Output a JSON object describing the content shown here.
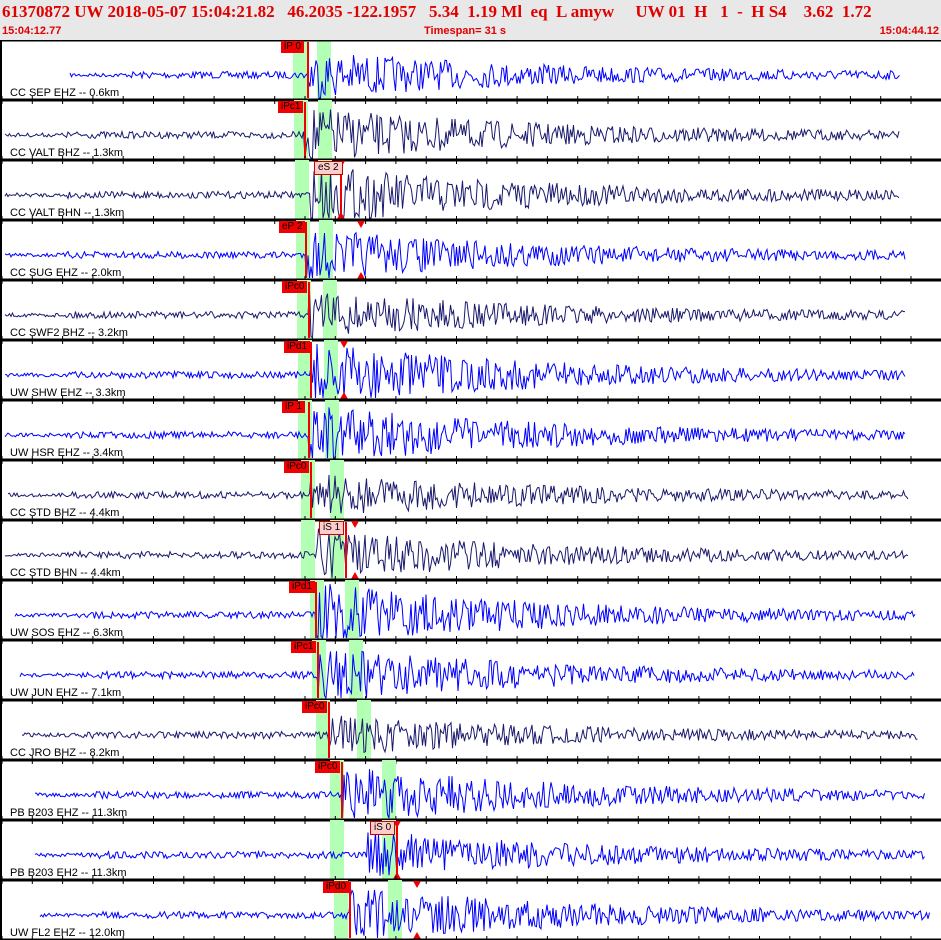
{
  "header": {
    "event_line": "61370872 UW 2018-05-07 15:04:21.82   46.2035 -122.1957   5.34  1.19 Ml  eq  L amyw     UW 01  H   1  -  H S4    3.62  1.72",
    "start_time": "15:04:12.77",
    "timespan": "Timespan=  31 s",
    "end_time": "15:04:44.12"
  },
  "colors": {
    "header_text": "#e00000",
    "trace_blue": "#0000ff",
    "trace_navy": "#1a1a6e",
    "pick": "#f00000",
    "window": "#b3ffb3"
  },
  "rows": [
    {
      "label": "CC SEP EHZ -- 0.6km",
      "pick": "iP 0",
      "color": "blue"
    },
    {
      "label": "CC VALT BHZ -- 1.3km",
      "pick": "iPc1",
      "color": "navy"
    },
    {
      "label": "CC VALT BHN -- 1.3km",
      "pick": "eS 2",
      "color": "navy"
    },
    {
      "label": "CC SUG EHZ -- 2.0km",
      "pick": "eP 2",
      "color": "blue"
    },
    {
      "label": "CC SWF2 BHZ -- 3.2km",
      "pick": "iPc0",
      "color": "navy"
    },
    {
      "label": "UW SHW EHZ -- 3.3km",
      "pick": "iPd1",
      "color": "blue"
    },
    {
      "label": "UW HSR EHZ -- 3.4km",
      "pick": "iP 1",
      "color": "blue"
    },
    {
      "label": "CC STD BHZ -- 4.4km",
      "pick": "iPc0",
      "color": "navy"
    },
    {
      "label": "CC STD BHN -- 4.4km",
      "pick": "iS 1",
      "color": "navy"
    },
    {
      "label": "UW SOS EHZ -- 6.3km",
      "pick": "iPd1",
      "color": "blue"
    },
    {
      "label": "UW JUN EHZ -- 7.1km",
      "pick": "iPc1",
      "color": "blue"
    },
    {
      "label": "CC JRO BHZ -- 8.2km",
      "pick": "iPc0",
      "color": "navy"
    },
    {
      "label": "PB B203 EHZ -- 11.3km",
      "pick": "iPc0",
      "color": "blue"
    },
    {
      "label": "PB B203 EH2 -- 11.3km",
      "pick": "iS 0",
      "color": "blue"
    },
    {
      "label": "UW FL2 EHZ -- 12.0km",
      "pick": "iPd0",
      "color": "blue"
    }
  ]
}
